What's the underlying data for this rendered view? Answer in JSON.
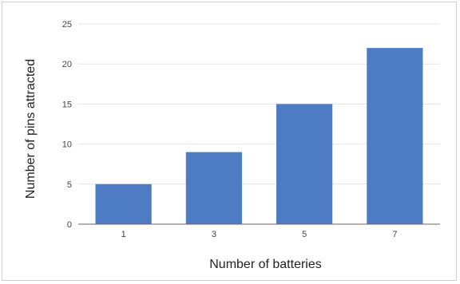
{
  "chart_data": {
    "type": "bar",
    "categories": [
      "1",
      "3",
      "5",
      "7"
    ],
    "values": [
      5,
      9,
      15,
      22
    ],
    "xlabel": "Number of batteries",
    "ylabel": "Number of pins attracted",
    "ylim": [
      0,
      25
    ],
    "yticks": [
      0,
      5,
      10,
      15,
      20,
      25
    ],
    "grid": true,
    "legend": "none",
    "colors": {
      "bar": "#4e7cc4",
      "grid": "#e3e3e3",
      "axis": "#666666"
    }
  }
}
